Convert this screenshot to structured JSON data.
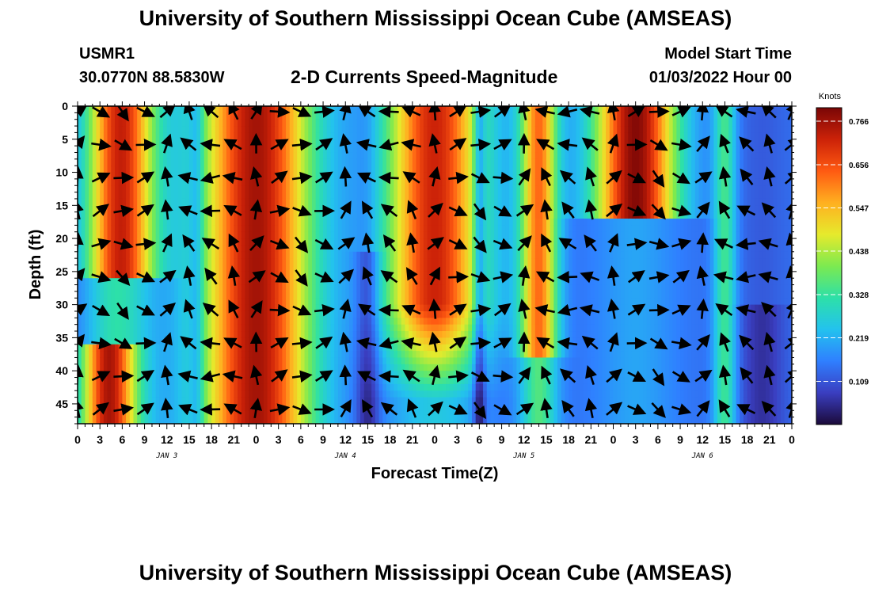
{
  "header": {
    "title": "University of Southern Mississippi Ocean Cube (AMSEAS)",
    "station_id": "USMR1",
    "station_coords": "30.0770N  88.5830W",
    "plot_title": "2-D Currents Speed-Magnitude",
    "start_label": "Model Start Time",
    "start_value": "01/03/2022 Hour 00"
  },
  "footer": {
    "title": "University of Southern Mississippi Ocean Cube (AMSEAS)"
  },
  "chart_data": {
    "type": "heatmap",
    "title": "2-D Currents Speed-Magnitude",
    "xlabel": "Forecast Time(Z)",
    "ylabel": "Depth (ft)",
    "x_tick_labels": [
      "0",
      "3",
      "6",
      "9",
      "12",
      "15",
      "18",
      "21",
      "0",
      "3",
      "6",
      "9",
      "12",
      "15",
      "18",
      "21",
      "0",
      "3",
      "6",
      "9",
      "12",
      "15",
      "18",
      "21",
      "0",
      "3",
      "6",
      "9",
      "12",
      "15",
      "18",
      "21",
      "0"
    ],
    "x_hours": [
      0,
      3,
      6,
      9,
      12,
      15,
      18,
      21,
      24,
      27,
      30,
      33,
      36,
      39,
      42,
      45,
      48,
      51,
      54,
      57,
      60,
      63,
      66,
      69,
      72,
      75,
      78,
      81,
      84,
      87,
      90,
      93,
      96
    ],
    "day_labels": [
      {
        "label": "JAN 3",
        "hour": 12
      },
      {
        "label": "JAN 4",
        "hour": 36
      },
      {
        "label": "JAN 5",
        "hour": 60
      },
      {
        "label": "JAN 6",
        "hour": 84
      }
    ],
    "y_ticks": [
      0,
      5,
      10,
      15,
      20,
      25,
      30,
      35,
      40,
      45
    ],
    "y_range": [
      0,
      48
    ],
    "x_range": [
      0,
      96
    ],
    "y_inverted": true,
    "colorbar": {
      "unit": "Knots",
      "ticks": [
        "0.766",
        "0.656",
        "0.547",
        "0.438",
        "0.328",
        "0.219",
        "0.109"
      ],
      "tick_values": [
        0.766,
        0.656,
        0.547,
        0.438,
        0.328,
        0.219,
        0.109
      ],
      "range": [
        0.0,
        0.8
      ],
      "colors": [
        "#1b0a3a",
        "#3a3ec0",
        "#2f7fff",
        "#23c2ee",
        "#2de0a8",
        "#7cea50",
        "#e6ea2c",
        "#ffb020",
        "#ff5a12",
        "#cc2208",
        "#7a0606"
      ]
    },
    "vector_hours": [
      0,
      3,
      6,
      9,
      12,
      15,
      18,
      21,
      24,
      27,
      30,
      33,
      36,
      39,
      42,
      45,
      48,
      51,
      54,
      57,
      60,
      63,
      66,
      69,
      72,
      75,
      78,
      81,
      84,
      87,
      90,
      93,
      96
    ],
    "vector_depths": [
      0,
      5,
      10,
      15,
      20,
      25,
      30,
      35,
      40,
      45
    ]
  }
}
